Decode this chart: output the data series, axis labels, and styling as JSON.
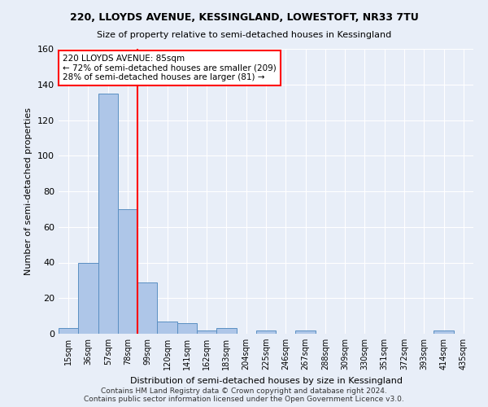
{
  "title1": "220, LLOYDS AVENUE, KESSINGLAND, LOWESTOFT, NR33 7TU",
  "title2": "Size of property relative to semi-detached houses in Kessingland",
  "xlabel": "Distribution of semi-detached houses by size in Kessingland",
  "ylabel": "Number of semi-detached properties",
  "footer": "Contains HM Land Registry data © Crown copyright and database right 2024.\nContains public sector information licensed under the Open Government Licence v3.0.",
  "bar_labels": [
    "15sqm",
    "36sqm",
    "57sqm",
    "78sqm",
    "99sqm",
    "120sqm",
    "141sqm",
    "162sqm",
    "183sqm",
    "204sqm",
    "225sqm",
    "246sqm",
    "267sqm",
    "288sqm",
    "309sqm",
    "330sqm",
    "351sqm",
    "372sqm",
    "393sqm",
    "414sqm",
    "435sqm"
  ],
  "bar_values": [
    3,
    40,
    135,
    70,
    29,
    7,
    6,
    2,
    3,
    0,
    2,
    0,
    2,
    0,
    0,
    0,
    0,
    0,
    0,
    2,
    0
  ],
  "bar_color": "#aec6e8",
  "bar_edge_color": "#5a8fc2",
  "background_color": "#e8eef8",
  "grid_color": "#ffffff",
  "vline_x": 3.5,
  "vline_color": "red",
  "annotation_title": "220 LLOYDS AVENUE: 85sqm",
  "annotation_line1": "← 72% of semi-detached houses are smaller (209)",
  "annotation_line2": "28% of semi-detached houses are larger (81) →",
  "annotation_box_color": "white",
  "annotation_box_edge": "red",
  "ylim": [
    0,
    160
  ],
  "yticks": [
    0,
    20,
    40,
    60,
    80,
    100,
    120,
    140,
    160
  ]
}
